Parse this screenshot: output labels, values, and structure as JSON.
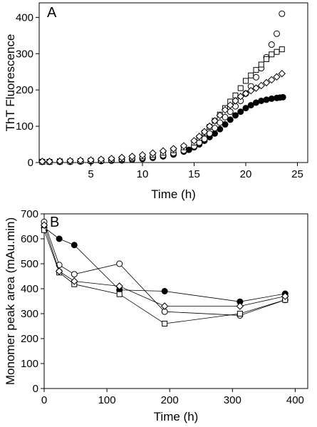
{
  "chart_data": [
    {
      "panel": "A",
      "type": "scatter",
      "xlabel": "Time (h)",
      "ylabel": "ThT Fluorescence",
      "xlim": [
        0,
        26
      ],
      "ylim": [
        0,
        440
      ],
      "xticks": [
        5,
        10,
        15,
        20,
        25
      ],
      "yticks": [
        0,
        100,
        200,
        300,
        400
      ],
      "series": [
        {
          "marker": "filled-circle",
          "x": [
            0.3,
            1,
            2,
            3,
            4,
            5,
            6,
            7,
            8,
            9,
            10,
            11,
            12,
            13,
            14,
            14.5,
            15,
            15.5,
            16,
            16.5,
            17,
            17.5,
            18,
            18.5,
            19,
            19.5,
            20,
            20.5,
            21,
            21.5,
            22,
            22.5,
            23,
            23.3,
            23.6
          ],
          "y": [
            2,
            2,
            2,
            2,
            3,
            3,
            4,
            5,
            6,
            8,
            10,
            13,
            17,
            22,
            30,
            35,
            42,
            50,
            60,
            70,
            80,
            92,
            105,
            118,
            130,
            140,
            150,
            158,
            165,
            170,
            173,
            176,
            178,
            179,
            180
          ]
        },
        {
          "marker": "open-circle",
          "x": [
            0.3,
            1,
            2,
            3,
            4,
            5,
            6,
            7,
            8,
            9,
            10,
            11,
            12,
            13,
            14,
            15,
            15.5,
            16,
            16.5,
            17,
            17.5,
            18,
            18.5,
            19,
            19.5,
            20,
            20.5,
            21,
            21.5,
            22,
            22.5,
            23,
            23.5
          ],
          "y": [
            2,
            2,
            2,
            3,
            3,
            4,
            5,
            6,
            8,
            10,
            13,
            16,
            20,
            26,
            33,
            45,
            55,
            65,
            80,
            95,
            110,
            125,
            140,
            155,
            170,
            190,
            210,
            235,
            260,
            290,
            325,
            355,
            410
          ]
        },
        {
          "marker": "open-square",
          "x": [
            0.3,
            1,
            2,
            3,
            4,
            5,
            6,
            7,
            8,
            9,
            10,
            11,
            12,
            13,
            14,
            15,
            15.5,
            16,
            16.5,
            17,
            17.5,
            18,
            18.5,
            19,
            19.5,
            20,
            20.5,
            21,
            21.5,
            22,
            22.5,
            23,
            23.5
          ],
          "y": [
            2,
            2,
            3,
            3,
            4,
            5,
            6,
            8,
            10,
            13,
            17,
            21,
            27,
            34,
            42,
            55,
            68,
            82,
            98,
            115,
            132,
            150,
            168,
            185,
            205,
            225,
            240,
            255,
            270,
            285,
            298,
            305,
            312
          ]
        },
        {
          "marker": "open-diamond",
          "x": [
            0.3,
            1,
            2,
            3,
            4,
            5,
            6,
            7,
            8,
            9,
            10,
            11,
            12,
            13,
            14,
            15,
            15.5,
            16,
            16.5,
            17,
            17.5,
            18,
            18.5,
            19,
            19.5,
            20,
            20.5,
            21,
            21.5,
            22,
            22.5,
            23,
            23.5
          ],
          "y": [
            3,
            3,
            4,
            5,
            6,
            7,
            9,
            11,
            14,
            17,
            21,
            26,
            32,
            38,
            46,
            60,
            72,
            85,
            100,
            115,
            130,
            145,
            158,
            170,
            182,
            190,
            198,
            205,
            212,
            220,
            228,
            236,
            245
          ]
        }
      ]
    },
    {
      "panel": "B",
      "type": "line",
      "xlabel": "Time (h)",
      "ylabel": "Monomer peak area (mAu.min)",
      "xlim": [
        0,
        420
      ],
      "ylim": [
        0,
        700
      ],
      "xticks": [
        0,
        100,
        200,
        300,
        400
      ],
      "yticks": [
        0,
        100,
        200,
        300,
        400,
        500,
        600,
        700
      ],
      "series": [
        {
          "marker": "filled-circle",
          "x": [
            0,
            24,
            48,
            120,
            192,
            312,
            384
          ],
          "y": [
            645,
            600,
            575,
            395,
            390,
            348,
            380
          ]
        },
        {
          "marker": "open-circle",
          "x": [
            0,
            24,
            48,
            120,
            192,
            312,
            384
          ],
          "y": [
            668,
            495,
            458,
            500,
            308,
            293,
            355
          ]
        },
        {
          "marker": "open-square",
          "x": [
            0,
            24,
            48,
            120,
            192,
            312,
            384
          ],
          "y": [
            635,
            465,
            418,
            378,
            260,
            300,
            355
          ]
        },
        {
          "marker": "open-diamond",
          "x": [
            0,
            24,
            48,
            120,
            192,
            312,
            384
          ],
          "y": [
            655,
            470,
            430,
            410,
            330,
            330,
            370
          ]
        }
      ]
    }
  ]
}
